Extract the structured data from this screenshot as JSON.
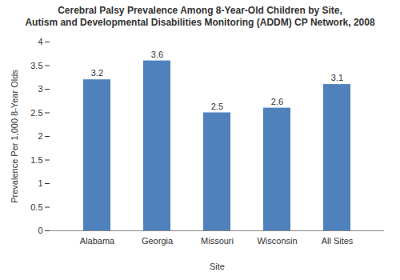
{
  "chart_data": {
    "type": "bar",
    "title": "Cerebral Palsy Prevalence Among 8-Year-Old Children by Site,\nAutism and Developmental Disabilities Monitoring (ADDM) CP Network, 2008",
    "x_label": "Site",
    "y_label": "Prevalence Per 1,000 8-Year Olds",
    "categories": [
      "Alabama",
      "Georgia",
      "Missouri",
      "Wisconsin",
      "All Sites"
    ],
    "values": [
      3.2,
      3.6,
      2.5,
      2.6,
      3.1
    ],
    "color": "#4f81bd",
    "ylim": [
      0,
      4
    ],
    "yticks": [
      0,
      0.5,
      1,
      1.5,
      2,
      2.5,
      3,
      3.5,
      4
    ],
    "grid": false,
    "data_labels": true
  }
}
